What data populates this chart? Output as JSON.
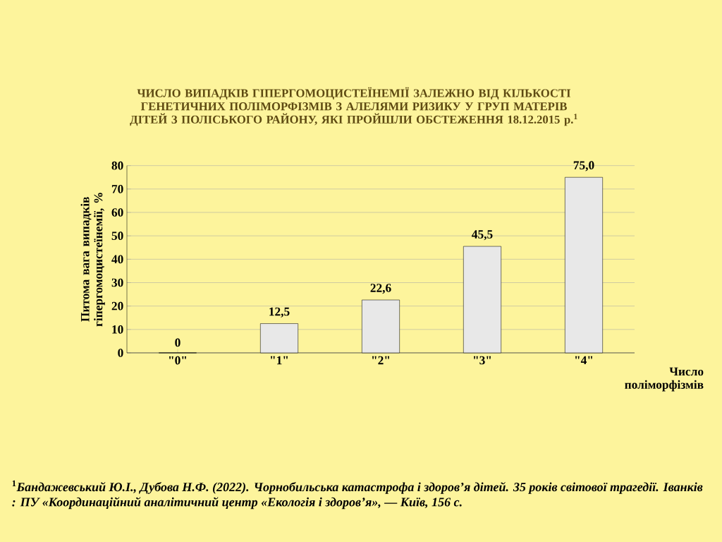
{
  "chart_data": {
    "type": "bar",
    "title": "ЧИСЛО ВИПАДКІВ ГІПЕРГОМОЦИСТЕЇНЕМІЇ ЗАЛЕЖНО ВІД КІЛЬКОСТІ ГЕНЕТИЧНИХ ПОЛІМОРФІЗМІВ З АЛЕЛЯМИ РИЗИКУ У ГРУП МАТЕРІВ ДІТЕЙ З ПОЛІСЬКОГО РАЙОНУ, ЯКІ ПРОЙШЛИ ОБСТЕЖЕННЯ 18.12.2015 р.$^{1}$",
    "ylabel": "Питома вага випадків гіпергомоцистеїнемії, %",
    "xlabel": "Число поліморфізмів",
    "categories": [
      "\"0\"",
      "\"1\"",
      "\"2\"",
      "\"3\"",
      "\"4\""
    ],
    "values": [
      0,
      12.5,
      22.6,
      45.5,
      75.0
    ],
    "value_labels": [
      "0",
      "12,5",
      "22,6",
      "45,5",
      "75,0"
    ],
    "color": "#e8e8e8",
    "ylim": [
      0,
      80
    ],
    "yticks": [
      0,
      10,
      20,
      30,
      40,
      50,
      60,
      70,
      80
    ],
    "grid": "y",
    "annotations": [
      "$^{1}$*Бандажевський Ю.І., Дубова Н.Ф. (2022). Чорнобильська катастрофа і здоров’я дітей. 35 років світової трагедії. Іванків : ПУ «Координаційний аналітичний центр «Екологія і здоров’я», — Київ, 156 с.*"
    ]
  }
}
